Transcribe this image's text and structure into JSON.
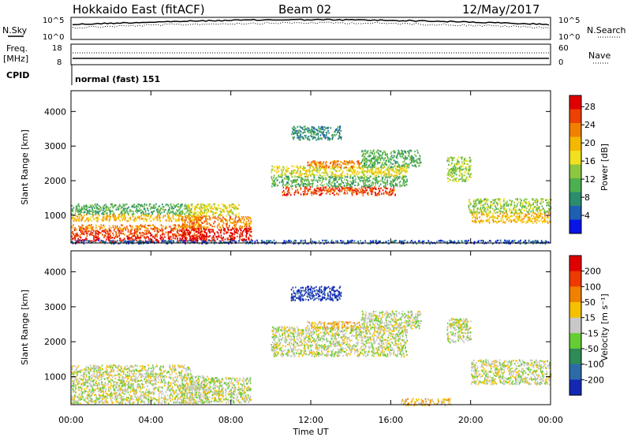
{
  "header": {
    "title": "Hokkaido East (fitACF)",
    "beam": "Beam 02",
    "date": "12/May/2017"
  },
  "top_panels": {
    "nsky": {
      "label": "N.Sky",
      "ticks": [
        "10^5",
        "10^0"
      ]
    },
    "nsearch": {
      "label": "N.Search",
      "ticks": [
        "10^5",
        "10^0"
      ]
    },
    "freq": {
      "label_line1": "Freq.",
      "label_line2": "[MHz]",
      "ticks": [
        "18",
        "8"
      ]
    },
    "nave": {
      "label": "Nave",
      "ticks": [
        "60",
        "0"
      ]
    },
    "cpid": {
      "label": "CPID",
      "mode": "normal (fast) 151"
    }
  },
  "chart_data": [
    {
      "type": "heatmap",
      "panel": "power",
      "x_ticks": [
        "00:00",
        "04:00",
        "08:00",
        "12:00",
        "16:00",
        "20:00",
        "00:00"
      ],
      "xlim_hours": [
        0,
        24
      ],
      "ylabel": "Slant Range [km]",
      "yticks": [
        1000,
        2000,
        3000,
        4000
      ],
      "ylim": [
        200,
        4600
      ],
      "colorbar": {
        "label": "Power [dB]",
        "ticks": [
          "4",
          "8",
          "12",
          "16",
          "20",
          "24",
          "28"
        ],
        "colors": [
          "#0a14e6",
          "#1e5fb4",
          "#2c8c6e",
          "#4caf50",
          "#8dc63f",
          "#f0e020",
          "#f5b800",
          "#f08000",
          "#ee4000",
          "#e00000"
        ]
      },
      "regions": [
        {
          "t": [
            0.0,
            6.8
          ],
          "r": [
            250,
            400
          ],
          "level": 9
        },
        {
          "t": [
            0.0,
            6.8
          ],
          "r": [
            400,
            600
          ],
          "level": 8
        },
        {
          "t": [
            0.0,
            6.5
          ],
          "r": [
            600,
            750
          ],
          "level": 7
        },
        {
          "t": [
            0.0,
            6.5
          ],
          "r": [
            850,
            1050
          ],
          "level": 6
        },
        {
          "t": [
            0.0,
            6.0
          ],
          "r": [
            1050,
            1350
          ],
          "level": 3
        },
        {
          "t": [
            5.5,
            9.0
          ],
          "r": [
            280,
            650
          ],
          "level": 9
        },
        {
          "t": [
            5.5,
            9.0
          ],
          "r": [
            650,
            1000
          ],
          "level": 7
        },
        {
          "t": [
            5.8,
            8.4
          ],
          "r": [
            1000,
            1350
          ],
          "level": 5
        },
        {
          "t": [
            10.5,
            16.2
          ],
          "r": [
            1600,
            1850
          ],
          "level": 8
        },
        {
          "t": [
            10.0,
            16.8
          ],
          "r": [
            1850,
            2150
          ],
          "level": 3
        },
        {
          "t": [
            10.0,
            16.8
          ],
          "r": [
            2150,
            2450
          ],
          "level": 5
        },
        {
          "t": [
            11.8,
            14.5
          ],
          "r": [
            2400,
            2600
          ],
          "level": 7
        },
        {
          "t": [
            14.5,
            17.5
          ],
          "r": [
            2400,
            2900
          ],
          "level": 3
        },
        {
          "t": [
            18.8,
            20.0
          ],
          "r": [
            2000,
            2700
          ],
          "level": 4
        },
        {
          "t": [
            20.0,
            24.0
          ],
          "r": [
            800,
            1100
          ],
          "level": 6
        },
        {
          "t": [
            19.8,
            24.0
          ],
          "r": [
            1100,
            1500
          ],
          "level": 4
        },
        {
          "t": [
            11.0,
            13.5
          ],
          "r": [
            3200,
            3600
          ],
          "level": 2
        },
        {
          "t": [
            0.0,
            24.0
          ],
          "r": [
            200,
            300
          ],
          "level": 1
        }
      ]
    },
    {
      "type": "heatmap",
      "panel": "velocity",
      "x_ticks": [
        "00:00",
        "04:00",
        "08:00",
        "12:00",
        "16:00",
        "20:00",
        "00:00"
      ],
      "xlim_hours": [
        0,
        24
      ],
      "xlabel": "Time UT",
      "ylabel": "Slant Range [km]",
      "yticks": [
        1000,
        2000,
        3000,
        4000
      ],
      "ylim": [
        200,
        4600
      ],
      "colorbar": {
        "label": "Velocity [m s⁻¹]",
        "ticks": [
          "200",
          "100",
          "50",
          "15",
          "-15",
          "-50",
          "-100",
          "-200"
        ],
        "colors": [
          "#1428b4",
          "#2c6ba8",
          "#2e8b57",
          "#66cc33",
          "#c8c8c8",
          "#f5c000",
          "#f08000",
          "#ee3a00",
          "#e00000"
        ]
      },
      "regions": [
        {
          "t": [
            0.0,
            6.8
          ],
          "r": [
            250,
            1050
          ],
          "level": 4
        },
        {
          "t": [
            0.0,
            6.0
          ],
          "r": [
            1050,
            1350
          ],
          "level": 4
        },
        {
          "t": [
            5.5,
            9.0
          ],
          "r": [
            280,
            1000
          ],
          "level": 4
        },
        {
          "t": [
            10.0,
            16.8
          ],
          "r": [
            1600,
            2450
          ],
          "level": 4
        },
        {
          "t": [
            11.8,
            14.5
          ],
          "r": [
            2400,
            2600
          ],
          "level": 5
        },
        {
          "t": [
            14.5,
            17.5
          ],
          "r": [
            2400,
            2900
          ],
          "level": 4
        },
        {
          "t": [
            20.0,
            24.0
          ],
          "r": [
            800,
            1500
          ],
          "level": 4
        },
        {
          "t": [
            18.8,
            20.0
          ],
          "r": [
            2000,
            2700
          ],
          "level": 4
        },
        {
          "t": [
            11.0,
            13.5
          ],
          "r": [
            3200,
            3600
          ],
          "level": 0
        },
        {
          "t": [
            16.5,
            19.0
          ],
          "r": [
            200,
            400
          ],
          "level": 5
        }
      ]
    }
  ]
}
